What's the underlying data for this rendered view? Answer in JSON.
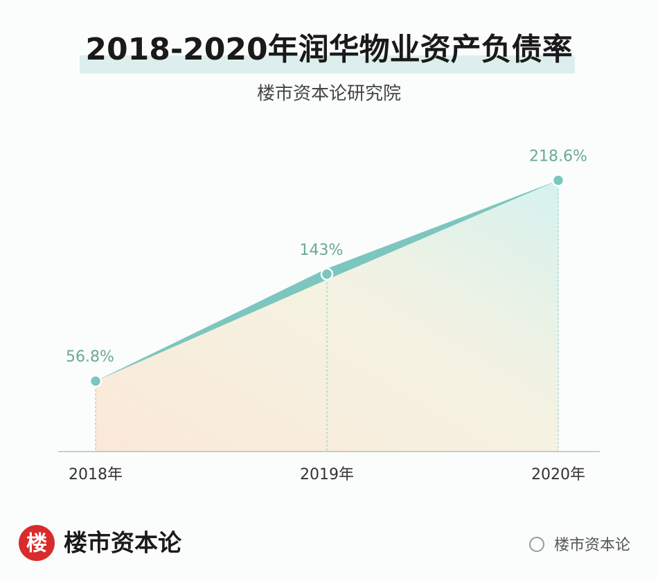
{
  "chart_data": {
    "type": "area",
    "title": "2018-2020年润华物业资产负债率",
    "subtitle": "楼市资本论研究院",
    "categories": [
      "2018年",
      "2019年",
      "2020年"
    ],
    "values": [
      56.8,
      143,
      218.6
    ],
    "value_labels": [
      "56.8%",
      "143%",
      "218.6%"
    ],
    "color": "#7cc6bf",
    "label_color": "#6aaa93",
    "ylim": [
      0,
      240
    ]
  },
  "footer": {
    "logo_char": "楼",
    "brand": "楼市资本论",
    "watermark": "楼市资本论"
  }
}
